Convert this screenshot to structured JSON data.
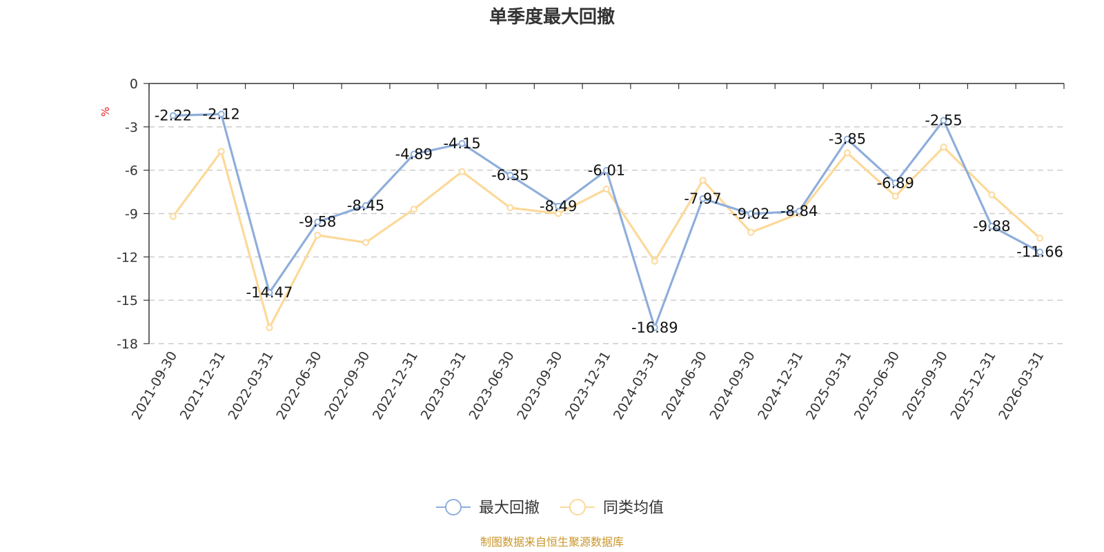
{
  "chart_data": {
    "type": "line",
    "title": "单季度最大回撤",
    "unit": "%",
    "categories": [
      "2021-09-30",
      "2021-12-31",
      "2022-03-31",
      "2022-06-30",
      "2022-09-30",
      "2022-12-31",
      "2023-03-31",
      "2023-06-30",
      "2023-09-30",
      "2023-12-31",
      "2024-03-31",
      "2024-06-30",
      "2024-09-30",
      "2024-12-31",
      "2025-03-31",
      "2025-06-30",
      "2025-09-30",
      "2025-12-31",
      "2026-03-31"
    ],
    "series": [
      {
        "name": "最大回撤",
        "color": "#8eaedb",
        "show_labels": true,
        "values": [
          -2.22,
          -2.12,
          -14.47,
          -9.58,
          -8.45,
          -4.89,
          -4.15,
          -6.35,
          -8.49,
          -6.01,
          -16.89,
          -7.97,
          -9.02,
          -8.84,
          -3.85,
          -6.89,
          -2.55,
          -9.88,
          -11.66
        ]
      },
      {
        "name": "同类均值",
        "color": "#fcd999",
        "show_labels": false,
        "values": [
          -9.2,
          -4.7,
          -16.9,
          -10.5,
          -11.0,
          -8.7,
          -6.1,
          -8.6,
          -9.0,
          -7.3,
          -12.3,
          -6.7,
          -10.3,
          -9.0,
          -4.8,
          -7.8,
          -4.4,
          -7.7,
          -10.7
        ]
      }
    ],
    "ylim": [
      -18,
      0
    ],
    "yticks": [
      0,
      -3,
      -6,
      -9,
      -12,
      -15,
      -18
    ],
    "grid": true,
    "legend_position": "bottom-center",
    "source_note": "制图数据来自恒生聚源数据库"
  }
}
